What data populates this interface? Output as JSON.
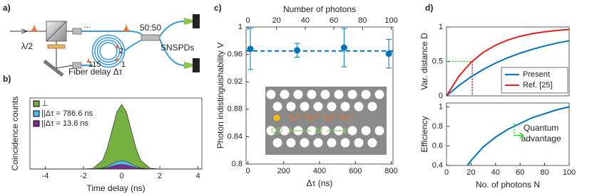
{
  "diagram": {
    "panel_label": "a)",
    "waveplate": "λ/2",
    "splitter": "50:50",
    "detectors": "SNSPDs",
    "delay": "Fiber delay Δτ",
    "loop_labels": [
      "115",
      "...",
      "2",
      "1"
    ]
  },
  "chart_data": [
    {
      "type": "area",
      "panel_label": "b)",
      "xlabel": "Time delay (ns)",
      "ylabel": "Coincidence counts",
      "xlim": [
        -4.8,
        4.2
      ],
      "xticks": [
        -4,
        -2,
        0,
        2,
        4
      ],
      "ylim": [
        0,
        1.1
      ],
      "legend": "upper left",
      "x": [
        -5,
        -2,
        -1.5,
        -1,
        -0.75,
        -0.5,
        -0.25,
        0,
        0.25,
        0.5,
        0.75,
        1,
        1.5,
        2,
        5
      ],
      "series": [
        {
          "name": "⊥",
          "color": "#76b041",
          "values": [
            0,
            0,
            0.011,
            0.135,
            0.325,
            0.607,
            0.882,
            1,
            0.882,
            0.607,
            0.325,
            0.135,
            0.011,
            0,
            0
          ]
        },
        {
          "name": "||Δτ = 786.6 ns",
          "color": "#4dbeee",
          "values": [
            0,
            0,
            0.002,
            0.018,
            0.042,
            0.079,
            0.115,
            0.13,
            0.115,
            0.079,
            0.042,
            0.018,
            0.002,
            0,
            0
          ]
        },
        {
          "name": "||Δτ = 13.8 ns",
          "color": "#7e2f8e",
          "values": [
            0,
            0,
            0.001,
            0.009,
            0.023,
            0.042,
            0.062,
            0.07,
            0.062,
            0.042,
            0.023,
            0.009,
            0.001,
            0,
            0
          ]
        }
      ]
    },
    {
      "type": "errorbar",
      "panel_label": "c)",
      "xlabel": "Δτ (ns)",
      "ylabel": "Photon indistinguishability V",
      "x2label": "Number of photons",
      "xlim": [
        -10,
        810
      ],
      "xticks": [
        0,
        200,
        400,
        600,
        800
      ],
      "x2lim": [
        -1.25,
        101.25
      ],
      "x2ticks": [
        0,
        20,
        40,
        60,
        80,
        100
      ],
      "ylim": [
        0.8,
        1
      ],
      "yticks": [
        0.8,
        0.84,
        0.88,
        0.92,
        0.96,
        1
      ],
      "x": [
        13.8,
        275,
        537,
        786.6
      ],
      "values": [
        0.968,
        0.966,
        0.97,
        0.961
      ],
      "errors": [
        0.03,
        0.01,
        0.028,
        0.021
      ],
      "color": "#0072bd",
      "reference_line": 0.965,
      "inset_labels": [
        "QD",
        "Δτ"
      ]
    },
    {
      "type": "line",
      "panel_label": "d)",
      "ylabel": "Var. distance D",
      "legend": "lower right",
      "xlim": [
        0,
        100
      ],
      "ylim": [
        0,
        1
      ],
      "yticks": [
        0,
        0.5,
        1
      ],
      "x": [
        0,
        10,
        20,
        30,
        40,
        50,
        60,
        70,
        80,
        90,
        100
      ],
      "series": [
        {
          "name": "Present",
          "color": "#0072bd",
          "values": [
            0,
            0.149,
            0.276,
            0.384,
            0.476,
            0.554,
            0.62,
            0.676,
            0.725,
            0.766,
            0.801
          ]
        },
        {
          "name": "Ref. [25]",
          "color": "#e0201b",
          "values": [
            0,
            0.283,
            0.487,
            0.632,
            0.736,
            0.811,
            0.865,
            0.903,
            0.93,
            0.95,
            0.964
          ]
        }
      ],
      "reference": {
        "x": 21,
        "y": 0.5
      }
    },
    {
      "type": "line",
      "ylabel": "Efficiency",
      "xlabel": "No. of photons N",
      "xlim": [
        0,
        100
      ],
      "xticks": [
        0,
        20,
        40,
        60,
        80,
        100
      ],
      "ylim": [
        0.4,
        1.04
      ],
      "yticks": [
        0.4,
        0.6,
        0.8,
        1
      ],
      "x": [
        17,
        20,
        30,
        40,
        50,
        55,
        60,
        70,
        80,
        90,
        100
      ],
      "series": [
        {
          "color": "#0072bd",
          "values": [
            0.4,
            0.45,
            0.59,
            0.69,
            0.77,
            0.8,
            0.83,
            0.89,
            0.93,
            0.97,
            1.0
          ]
        }
      ],
      "arrow_x": 55,
      "annotation": [
        "Quantum",
        "advantage"
      ]
    }
  ]
}
